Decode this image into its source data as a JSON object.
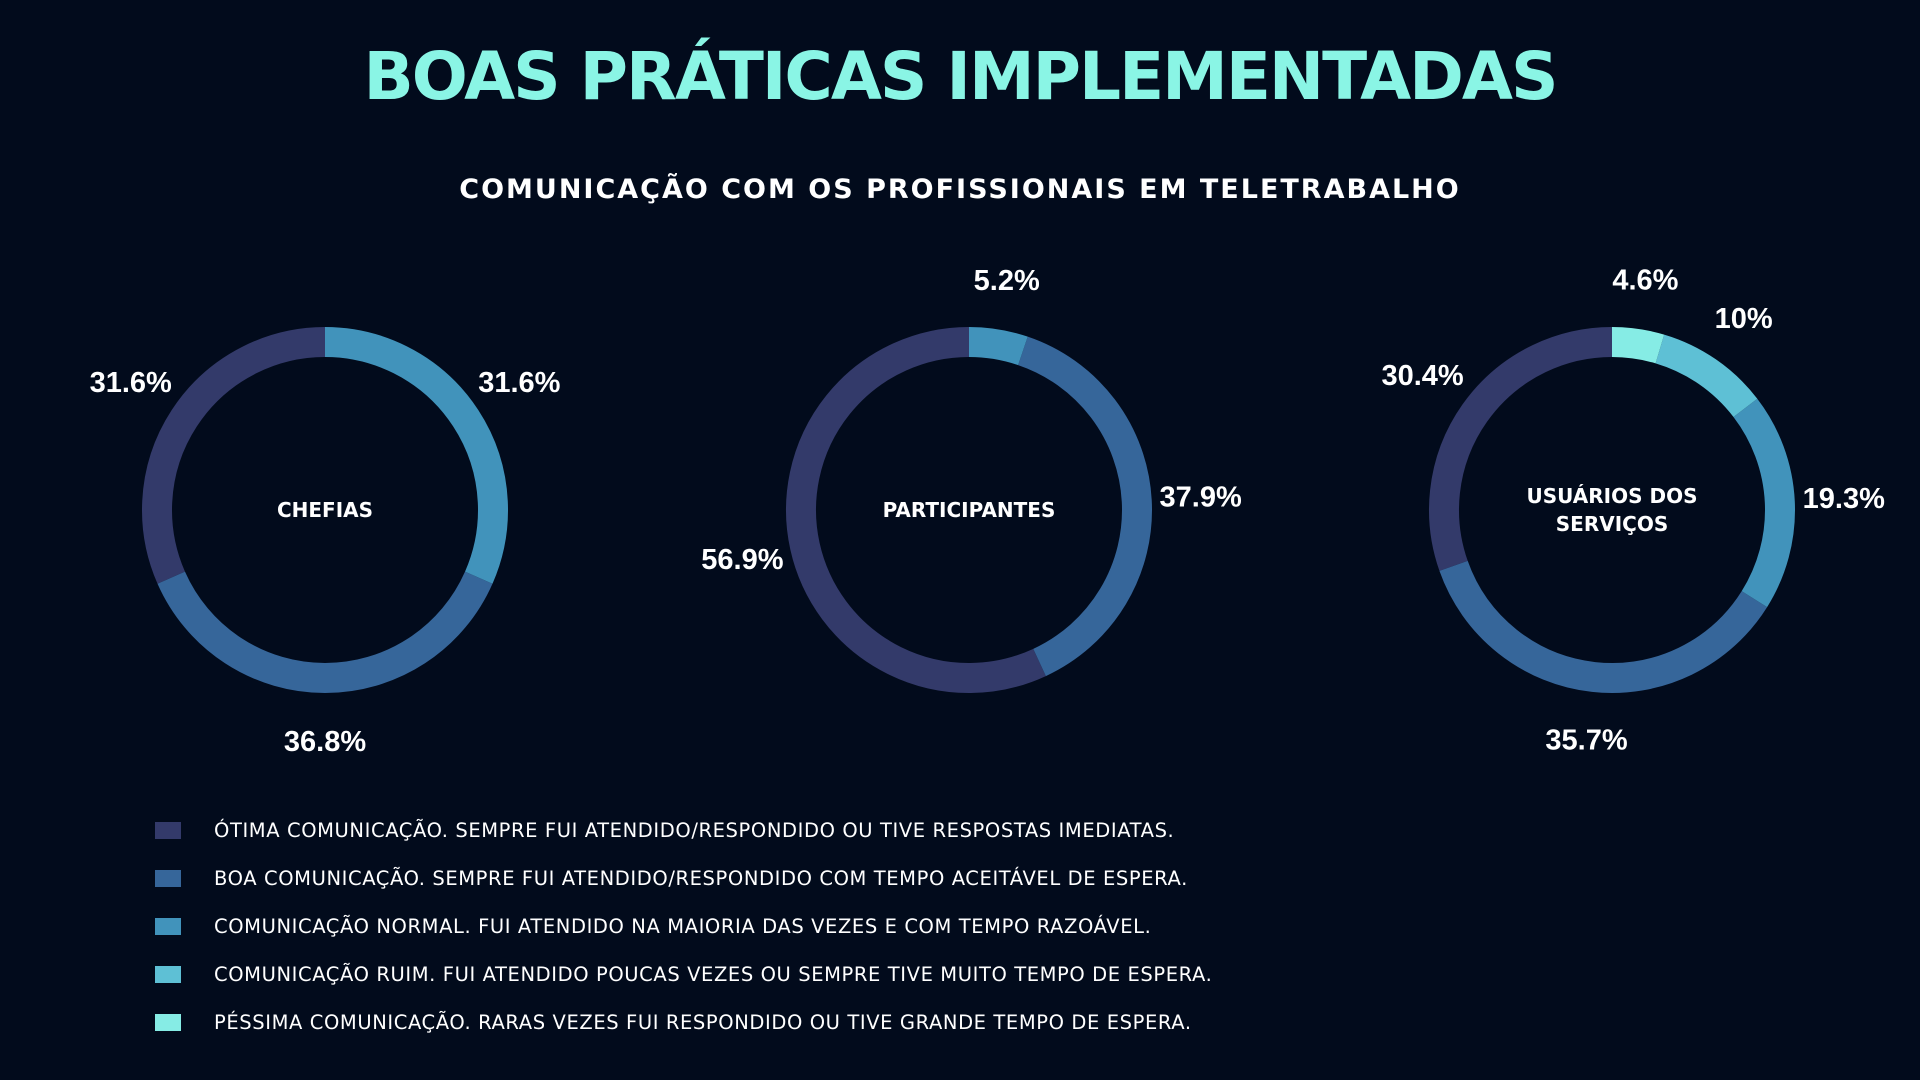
{
  "title": "BOAS PRÁTICAS IMPLEMENTADAS",
  "subtitle": "COMUNICAÇÃO COM OS PROFISSIONAIS EM TELETRABALHO",
  "legend": [
    {
      "label": "ÓTIMA COMUNICAÇÃO. SEMPRE FUI ATENDIDO/RESPONDIDO OU TIVE RESPOSTAS IMEDIATAS.",
      "color": "#333a6a"
    },
    {
      "label": "BOA COMUNICAÇÃO. SEMPRE FUI ATENDIDO/RESPONDIDO COM TEMPO ACEITÁVEL DE ESPERA.",
      "color": "#36669a"
    },
    {
      "label": "COMUNICAÇÃO NORMAL. FUI ATENDIDO NA MAIORIA DAS VEZES E COM TEMPO RAZOÁVEL.",
      "color": "#4193bb"
    },
    {
      "label": "COMUNICAÇÃO RUIM. FUI ATENDIDO POUCAS VEZES OU SEMPRE TIVE MUITO TEMPO DE ESPERA.",
      "color": "#5ec0d5"
    },
    {
      "label": "PÉSSIMA COMUNICAÇÃO. RARAS VEZES FUI RESPONDIDO OU TIVE GRANDE TEMPO DE ESPERA.",
      "color": "#86ece5"
    }
  ],
  "chart_data": [
    {
      "type": "pie",
      "center_label": [
        "CHEFIAS"
      ],
      "categories": [
        "Ótima comunicação",
        "Boa comunicação",
        "Comunicação normal",
        "Comunicação ruim",
        "Péssima comunicação"
      ],
      "values": [
        31.6,
        36.8,
        31.6,
        0,
        0
      ],
      "value_labels": [
        "31.6%",
        "36.8%",
        "31.6%",
        "",
        ""
      ]
    },
    {
      "type": "pie",
      "center_label": [
        "PARTICIPANTES"
      ],
      "categories": [
        "Ótima comunicação",
        "Boa comunicação",
        "Comunicação normal",
        "Comunicação ruim",
        "Péssima comunicação"
      ],
      "values": [
        56.9,
        37.9,
        5.2,
        0,
        0
      ],
      "value_labels": [
        "56.9%",
        "37.9%",
        "5.2%",
        "",
        ""
      ]
    },
    {
      "type": "pie",
      "center_label": [
        "USUÁRIOS DOS",
        "SERVIÇOS"
      ],
      "categories": [
        "Ótima comunicação",
        "Boa comunicação",
        "Comunicação normal",
        "Comunicação ruim",
        "Péssima comunicação"
      ],
      "values": [
        30.4,
        35.7,
        19.3,
        10,
        4.6
      ],
      "value_labels": [
        "30.4%",
        "35.7%",
        "19.3%",
        "10%",
        "4.6%"
      ]
    }
  ]
}
